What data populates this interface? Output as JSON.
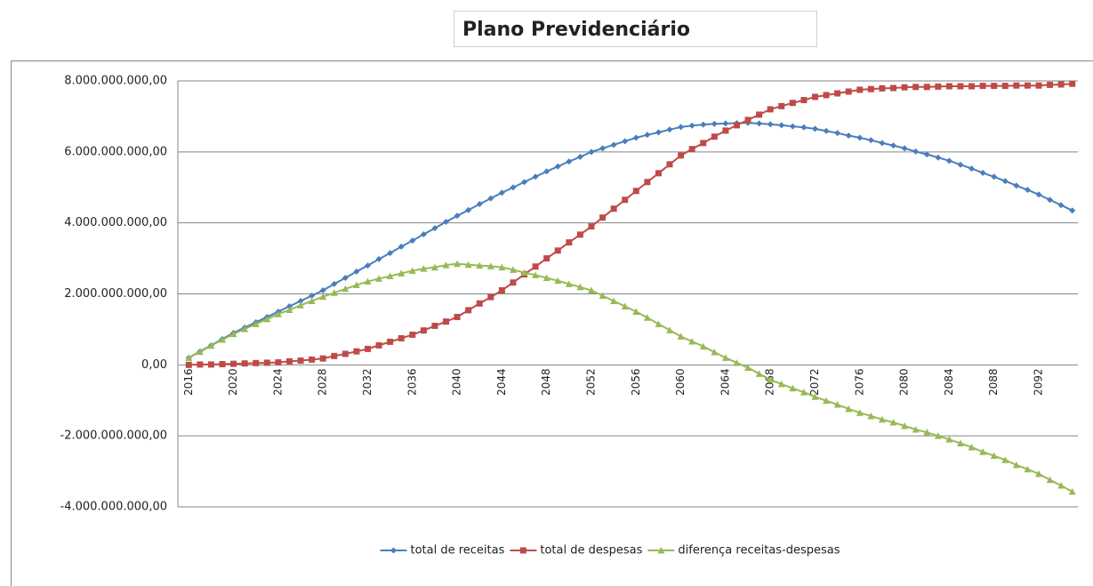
{
  "chart_data": {
    "type": "line",
    "title": "Plano Previdenciário",
    "categories": [
      "2016",
      null,
      null,
      null,
      "2020",
      null,
      null,
      null,
      "2024",
      null,
      null,
      null,
      "2028",
      null,
      null,
      null,
      "2032",
      null,
      null,
      null,
      "2036",
      null,
      null,
      null,
      "2040",
      null,
      null,
      null,
      "2044",
      null,
      null,
      null,
      "2048",
      null,
      null,
      null,
      "2052",
      null,
      null,
      null,
      "2056",
      null,
      null,
      null,
      "2060",
      null,
      null,
      null,
      "2064",
      null,
      null,
      null,
      "2068",
      null,
      null,
      null,
      "2072",
      null,
      null,
      null,
      "2076",
      null,
      null,
      null,
      "2080",
      null,
      null,
      null,
      "2084",
      null,
      null,
      null,
      "2088",
      null,
      null,
      null,
      "2092",
      null,
      null,
      null
    ],
    "series": [
      {
        "name": "total de receitas",
        "color": "#4a7ebb",
        "marker": "diamond",
        "values": [
          200000000.0,
          380000000.0,
          550000000.0,
          730000000.0,
          900000000.0,
          1050000000.0,
          1200000000.0,
          1350000000.0,
          1500000000.0,
          1650000000.0,
          1800000000.0,
          1950000000.0,
          2100000000.0,
          2280000000.0,
          2450000000.0,
          2630000000.0,
          2800000000.0,
          2980000000.0,
          3150000000.0,
          3330000000.0,
          3500000000.0,
          3680000000.0,
          3850000000.0,
          4030000000.0,
          4200000000.0,
          4360000000.0,
          4530000000.0,
          4690000000.0,
          4850000000.0,
          5000000000.0,
          5150000000.0,
          5300000000.0,
          5450000000.0,
          5590000000.0,
          5730000000.0,
          5860000000.0,
          6000000000.0,
          6100000000.0,
          6200000000.0,
          6300000000.0,
          6400000000.0,
          6480000000.0,
          6550000000.0,
          6630000000.0,
          6700000000.0,
          6740000000.0,
          6770000000.0,
          6790000000.0,
          6800000000.0,
          6810000000.0,
          6820000000.0,
          6800000000.0,
          6780000000.0,
          6750000000.0,
          6720000000.0,
          6690000000.0,
          6650000000.0,
          6590000000.0,
          6530000000.0,
          6460000000.0,
          6400000000.0,
          6330000000.0,
          6250000000.0,
          6180000000.0,
          6100000000.0,
          6010000000.0,
          5930000000.0,
          5840000000.0,
          5750000000.0,
          5640000000.0,
          5530000000.0,
          5410000000.0,
          5300000000.0,
          5180000000.0,
          5050000000.0,
          4930000000.0,
          4800000000.0,
          4650000000.0,
          4500000000.0,
          4350000000.0
        ]
      },
      {
        "name": "total de despesas",
        "color": "#be4b48",
        "marker": "square",
        "values": [
          0,
          10000000.0,
          10000000.0,
          20000000.0,
          30000000.0,
          40000000.0,
          50000000.0,
          60000000.0,
          70000000.0,
          100000000.0,
          120000000.0,
          150000000.0,
          180000000.0,
          250000000.0,
          310000000.0,
          380000000.0,
          450000000.0,
          550000000.0,
          650000000.0,
          750000000.0,
          850000000.0,
          970000000.0,
          1100000000.0,
          1220000000.0,
          1350000000.0,
          1540000000.0,
          1730000000.0,
          1910000000.0,
          2100000000.0,
          2320000000.0,
          2550000000.0,
          2770000000.0,
          3000000000.0,
          3220000000.0,
          3450000000.0,
          3670000000.0,
          3900000000.0,
          4150000000.0,
          4400000000.0,
          4650000000.0,
          4900000000.0,
          5150000000.0,
          5400000000.0,
          5650000000.0,
          5900000000.0,
          6080000000.0,
          6250000000.0,
          6430000000.0,
          6600000000.0,
          6750000000.0,
          6900000000.0,
          7050000000.0,
          7200000000.0,
          7290000000.0,
          7380000000.0,
          7460000000.0,
          7550000000.0,
          7600000000.0,
          7650000000.0,
          7700000000.0,
          7750000000.0,
          7770000000.0,
          7790000000.0,
          7800000000.0,
          7820000000.0,
          7830000000.0,
          7830000000.0,
          7840000000.0,
          7850000000.0,
          7850000000.0,
          7850000000.0,
          7860000000.0,
          7860000000.0,
          7860000000.0,
          7870000000.0,
          7870000000.0,
          7870000000.0,
          7890000000.0,
          7900000000.0,
          7920000000.0
        ]
      },
      {
        "name": "diferença receitas-despesas",
        "color": "#98b954",
        "marker": "triangle",
        "values": [
          200000000.0,
          370000000.0,
          540000000.0,
          710000000.0,
          870000000.0,
          1010000000.0,
          1150000000.0,
          1290000000.0,
          1430000000.0,
          1550000000.0,
          1680000000.0,
          1800000000.0,
          1920000000.0,
          2030000000.0,
          2140000000.0,
          2250000000.0,
          2350000000.0,
          2430000000.0,
          2500000000.0,
          2580000000.0,
          2650000000.0,
          2710000000.0,
          2750000000.0,
          2810000000.0,
          2850000000.0,
          2820000000.0,
          2800000000.0,
          2780000000.0,
          2750000000.0,
          2680000000.0,
          2600000000.0,
          2530000000.0,
          2450000000.0,
          2370000000.0,
          2280000000.0,
          2190000000.0,
          2100000000.0,
          1950000000.0,
          1800000000.0,
          1650000000.0,
          1500000000.0,
          1330000000.0,
          1150000000.0,
          980000000.0,
          800000000.0,
          660000000.0,
          520000000.0,
          360000000.0,
          200000000.0,
          60000000.0,
          -80000000.0,
          -250000000.0,
          -420000000.0,
          -540000000.0,
          -660000000.0,
          -770000000.0,
          -900000000.0,
          -1010000000.0,
          -1120000000.0,
          -1240000000.0,
          -1350000000.0,
          -1440000000.0,
          -1540000000.0,
          -1620000000.0,
          -1720000000.0,
          -1820000000.0,
          -1900000000.0,
          -2000000000.0,
          -2100000000.0,
          -2210000000.0,
          -2320000000.0,
          -2450000000.0,
          -2560000000.0,
          -2680000000.0,
          -2820000000.0,
          -2940000000.0,
          -3070000000.0,
          -3240000000.0,
          -3400000000.0,
          -3570000000.0
        ]
      }
    ],
    "ylim": [
      -4000000000,
      8000000000
    ],
    "yticks": [
      {
        "value": -4000000000,
        "label": "-4.000.000.000,00"
      },
      {
        "value": -2000000000,
        "label": "-2.000.000.000,00"
      },
      {
        "value": 0,
        "label": "0,00"
      },
      {
        "value": 2000000000,
        "label": "2.000.000.000,00"
      },
      {
        "value": 4000000000,
        "label": "4.000.000.000,00"
      },
      {
        "value": 6000000000,
        "label": "6.000.000.000,00"
      },
      {
        "value": 8000000000,
        "label": "8.000.000.000,00"
      }
    ],
    "grid": true,
    "legend": "bottom"
  }
}
